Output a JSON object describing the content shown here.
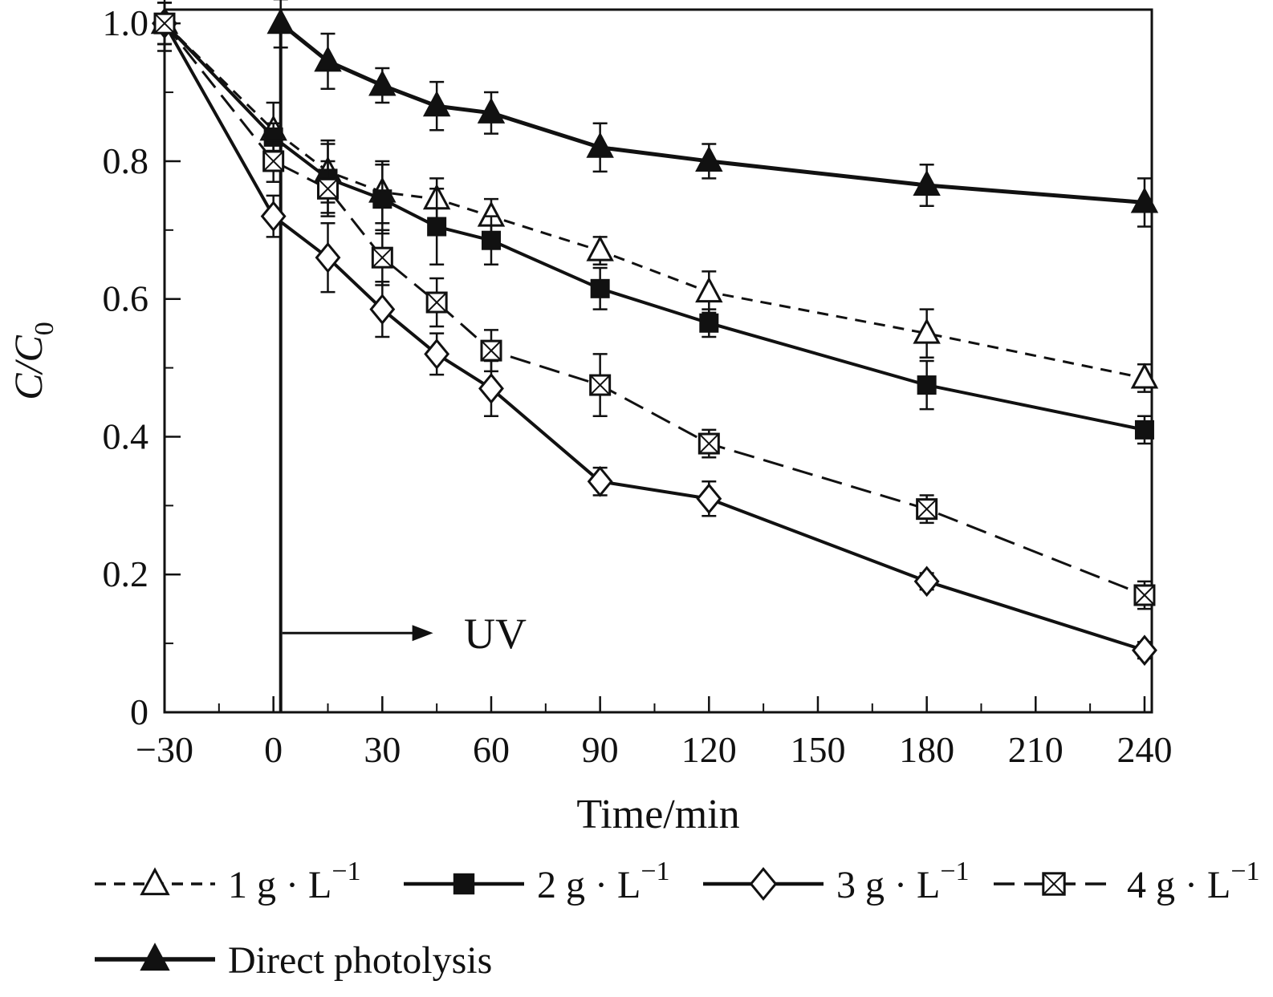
{
  "chart_data": {
    "type": "line",
    "title": "",
    "xlabel": "Time/min",
    "ylabel": "C/C0",
    "ylabel_main": "C/C",
    "ylabel_sub": "0",
    "xlim": [
      -30,
      242
    ],
    "ylim": [
      0,
      1.02
    ],
    "grid": false,
    "legend_position": "bottom-left, two rows",
    "xticks": [
      -30,
      0,
      30,
      60,
      90,
      120,
      150,
      180,
      210,
      240
    ],
    "xtick_labels": [
      "−30",
      "0",
      "30",
      "60",
      "90",
      "120",
      "150",
      "180",
      "210",
      "240"
    ],
    "yticks": [
      0,
      0.2,
      0.4,
      0.6,
      0.8,
      1.0
    ],
    "ytick_labels": [
      "0",
      "0.2",
      "0.4",
      "0.6",
      "0.8",
      "1.0"
    ],
    "minor_xtick_step": 15,
    "minor_ytick_step": 0.1,
    "uv_line": {
      "x": 2,
      "label": "UV",
      "arrow_y": 0.115,
      "arrow_x_end": 44,
      "meaning": "vertical line marks UV lamp switched on at t = 0; arrow labelled UV"
    },
    "series": [
      {
        "name": "1 g·L−1",
        "label_main": "1 g · L",
        "label_sup": "−1",
        "marker": "triangle-open",
        "line_style": "dashed",
        "dash": "14 10",
        "line_width": 3,
        "x": [
          -30,
          0,
          15,
          30,
          45,
          60,
          90,
          120,
          180,
          240
        ],
        "y": [
          1.0,
          0.845,
          0.785,
          0.755,
          0.745,
          0.72,
          0.67,
          0.61,
          0.55,
          0.485
        ],
        "yerr": [
          0.03,
          0.04,
          0.045,
          0.045,
          0.03,
          0.025,
          0.02,
          0.03,
          0.035,
          0.02
        ]
      },
      {
        "name": "2 g·L−1",
        "label_main": "2 g · L",
        "label_sup": "−1",
        "marker": "square-filled",
        "line_style": "solid",
        "dash": "",
        "line_width": 4,
        "x": [
          -30,
          0,
          15,
          30,
          45,
          60,
          90,
          120,
          180,
          240
        ],
        "y": [
          1.0,
          0.835,
          0.775,
          0.745,
          0.705,
          0.685,
          0.615,
          0.565,
          0.475,
          0.41
        ],
        "yerr": [
          0.03,
          0.02,
          0.05,
          0.05,
          0.055,
          0.035,
          0.03,
          0.02,
          0.035,
          0.02
        ]
      },
      {
        "name": "3 g·L−1",
        "label_main": "3 g · L",
        "label_sup": "−1",
        "marker": "diamond-open",
        "line_style": "solid",
        "dash": "",
        "line_width": 4,
        "x": [
          -30,
          0,
          15,
          30,
          45,
          60,
          90,
          120,
          180,
          240
        ],
        "y": [
          1.0,
          0.72,
          0.66,
          0.585,
          0.52,
          0.47,
          0.335,
          0.31,
          0.19,
          0.09
        ],
        "yerr": [
          0.03,
          0.03,
          0.05,
          0.04,
          0.03,
          0.04,
          0.02,
          0.025,
          0.012,
          0.012
        ]
      },
      {
        "name": "4 g·L−1",
        "label_main": "4 g · L",
        "label_sup": "−1",
        "marker": "square-cross",
        "line_style": "dashed",
        "dash": "26 12",
        "line_width": 3,
        "x": [
          -30,
          0,
          15,
          30,
          45,
          60,
          90,
          120,
          180,
          240
        ],
        "y": [
          1.0,
          0.8,
          0.76,
          0.66,
          0.595,
          0.525,
          0.475,
          0.39,
          0.295,
          0.17
        ],
        "yerr": [
          0.04,
          0.03,
          0.04,
          0.04,
          0.035,
          0.03,
          0.045,
          0.02,
          0.02,
          0.02
        ]
      },
      {
        "name": "Direct photolysis",
        "label_main": "Direct photolysis",
        "label_sup": "",
        "marker": "triangle-filled",
        "line_style": "solid",
        "dash": "",
        "line_width": 5,
        "x": [
          2,
          15,
          30,
          45,
          60,
          90,
          120,
          180,
          240
        ],
        "y": [
          1.0,
          0.945,
          0.91,
          0.88,
          0.87,
          0.82,
          0.8,
          0.765,
          0.74
        ],
        "yerr": [
          0.035,
          0.04,
          0.025,
          0.035,
          0.03,
          0.035,
          0.025,
          0.03,
          0.035
        ]
      }
    ],
    "colors": {
      "ink": "#111111",
      "background": "#ffffff"
    }
  }
}
